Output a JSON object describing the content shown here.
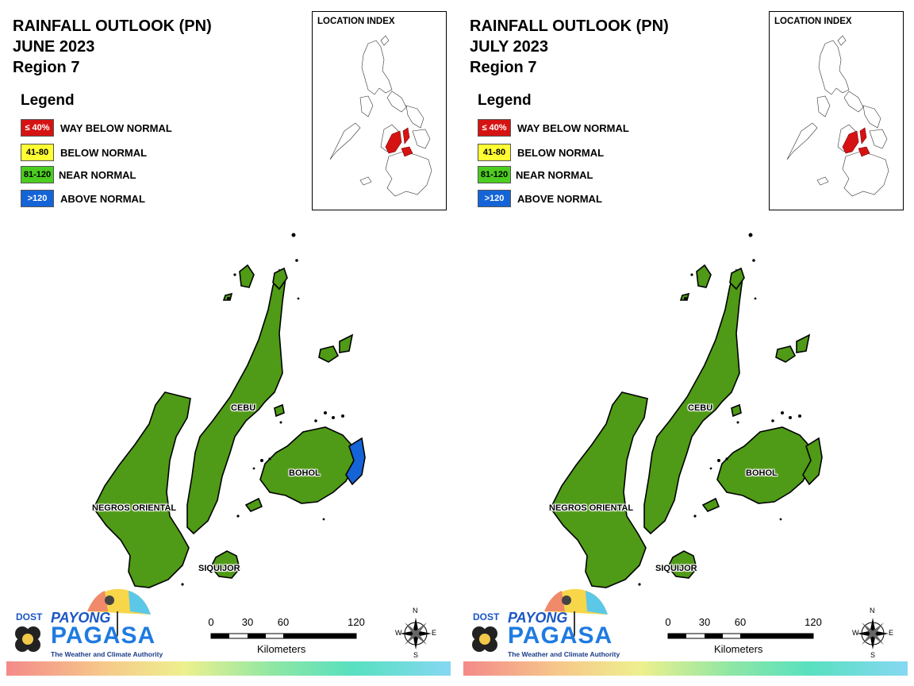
{
  "panels": [
    {
      "title_line1": "RAINFALL OUTLOOK (PN)",
      "title_line2": "JUNE 2023",
      "title_line3": "Region 7",
      "legend": {
        "title": "Legend",
        "items": [
          {
            "range": "≤ 40%",
            "label": "WAY BELOW NORMAL",
            "color": "#d61313"
          },
          {
            "range": "41-80",
            "label": "BELOW NORMAL",
            "color": "#ffff33"
          },
          {
            "range": "81-120",
            "label": "NEAR NORMAL",
            "color": "#4ccd1f"
          },
          {
            "range": ">120",
            "label": "ABOVE NORMAL",
            "color": "#1464d8"
          }
        ]
      },
      "inset_title": "LOCATION INDEX",
      "map_labels": {
        "cebu": "CEBU",
        "bohol": "BOHOL",
        "negros": "NEGROS ORIENTAL",
        "siquijor": "SIQUIJOR"
      },
      "map_colors": {
        "land": "#4f9a16",
        "bohol_east": "#1464d8"
      },
      "logo": {
        "dost": "DOST",
        "payong": "PAYONG",
        "pagasa": "PAGASA",
        "tagline": "The Weather and Climate Authority"
      },
      "scale": {
        "ticks": [
          "0",
          "30",
          "60",
          "120"
        ],
        "unit": "Kilometers"
      },
      "compass": {
        "n": "N",
        "s": "S",
        "e": "E",
        "w": "W"
      }
    },
    {
      "title_line1": "RAINFALL OUTLOOK (PN)",
      "title_line2": "JULY 2023",
      "title_line3": "Region 7",
      "legend": {
        "title": "Legend",
        "items": [
          {
            "range": "≤ 40%",
            "label": "WAY BELOW NORMAL",
            "color": "#d61313"
          },
          {
            "range": "41-80",
            "label": "BELOW NORMAL",
            "color": "#ffff33"
          },
          {
            "range": "81-120",
            "label": "NEAR NORMAL",
            "color": "#4ccd1f"
          },
          {
            "range": ">120",
            "label": "ABOVE NORMAL",
            "color": "#1464d8"
          }
        ]
      },
      "inset_title": "LOCATION INDEX",
      "map_labels": {
        "cebu": "CEBU",
        "bohol": "BOHOL",
        "negros": "NEGROS ORIENTAL",
        "siquijor": "SIQUIJOR"
      },
      "map_colors": {
        "land": "#4f9a16",
        "bohol_east": "#4f9a16"
      },
      "logo": {
        "dost": "DOST",
        "payong": "PAYONG",
        "pagasa": "PAGASA",
        "tagline": "The Weather and Climate Authority"
      },
      "scale": {
        "ticks": [
          "0",
          "30",
          "60",
          "120"
        ],
        "unit": "Kilometers"
      },
      "compass": {
        "n": "N",
        "s": "S",
        "e": "E",
        "w": "W"
      }
    }
  ]
}
